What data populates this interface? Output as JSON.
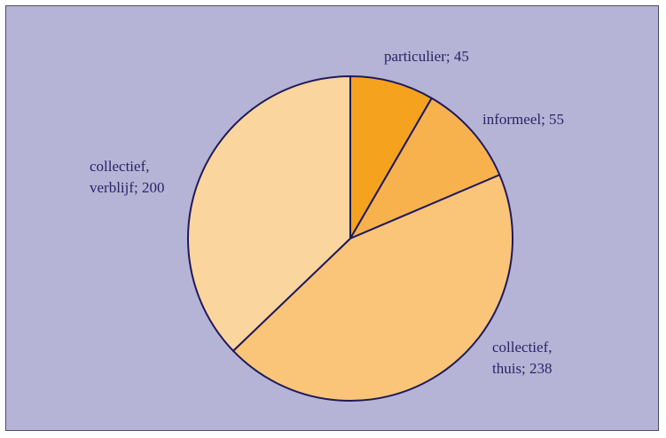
{
  "chart_data": {
    "type": "pie",
    "title": "",
    "slices": [
      {
        "label_lines": [
          "particulier; 45"
        ],
        "value": 45,
        "color": "#f5a21f"
      },
      {
        "label_lines": [
          "informeel; 55"
        ],
        "value": 55,
        "color": "#f8b24d"
      },
      {
        "label_lines": [
          "collectief,",
          "thuis; 238"
        ],
        "value": 238,
        "color": "#fac579"
      },
      {
        "label_lines": [
          "collectief,",
          "verblijf; 200"
        ],
        "value": 200,
        "color": "#fbd59e"
      }
    ],
    "start_angle_deg": 0,
    "direction": "clockwise"
  },
  "colors": {
    "background": "#b6b4d6",
    "outline": "#1f1a5c",
    "label_text": "#2a2366"
  }
}
